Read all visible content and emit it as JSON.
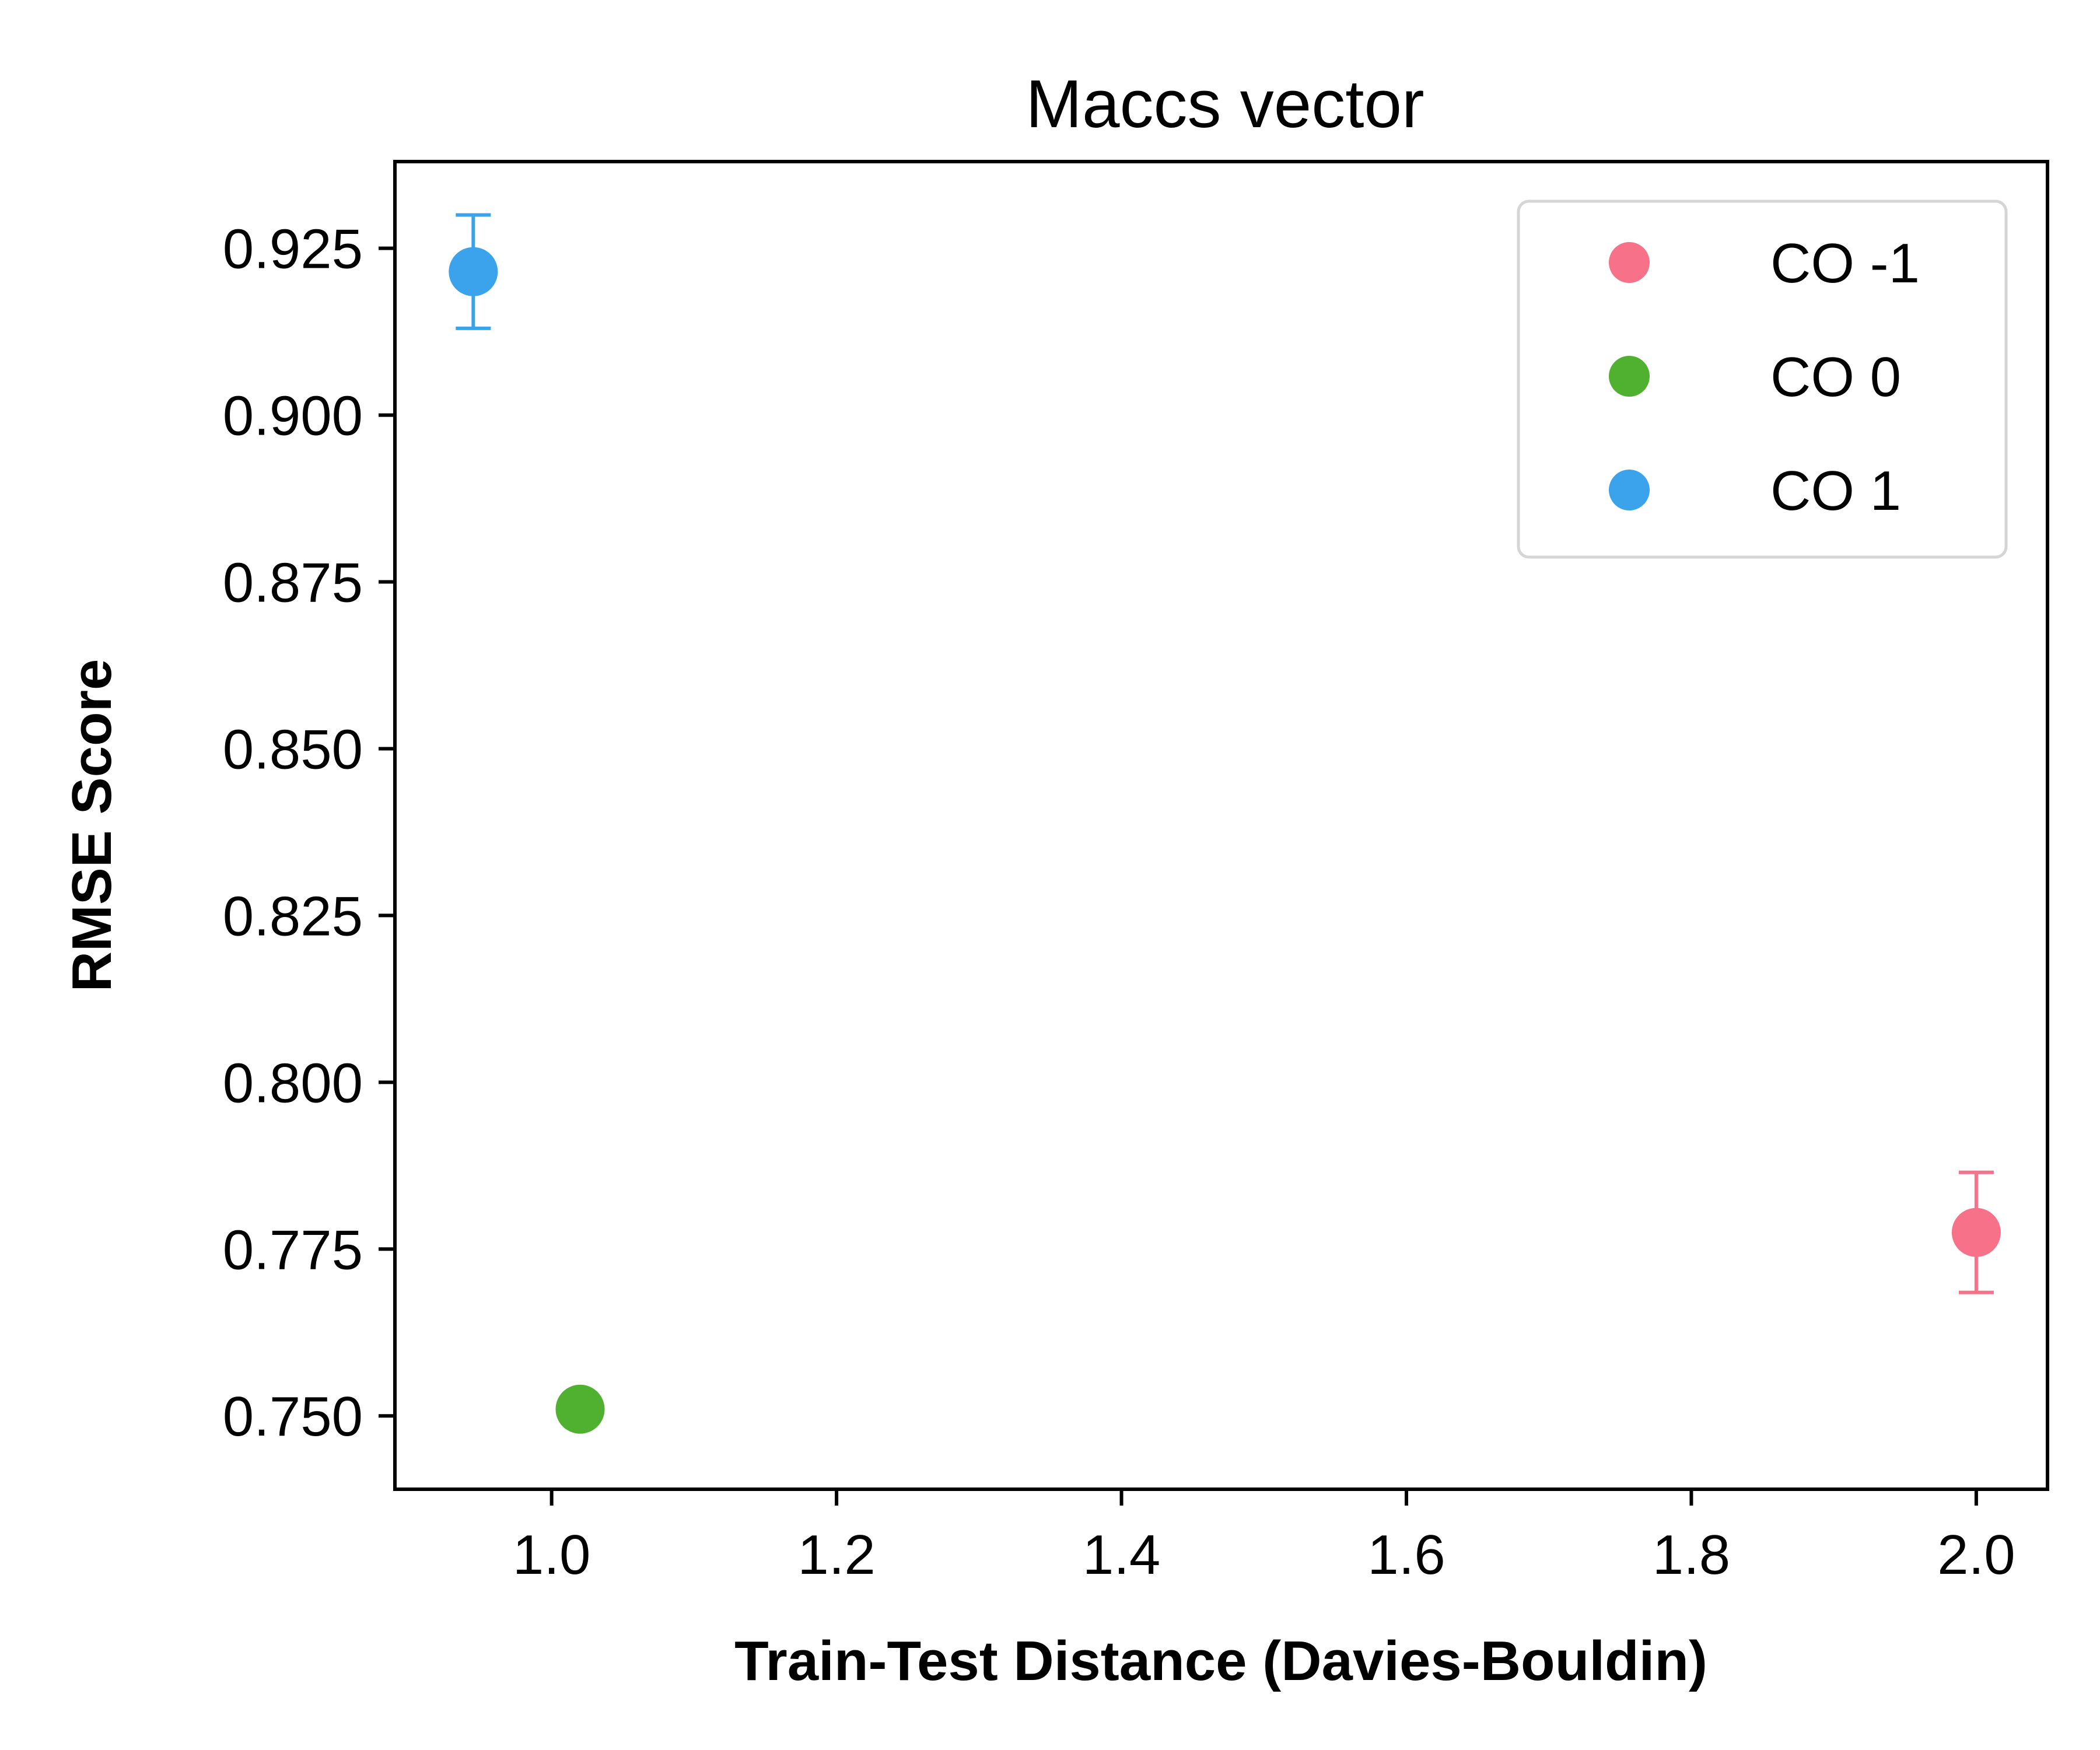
{
  "chart_data": {
    "type": "scatter",
    "title": "Maccs vector",
    "xlabel": "Train-Test Distance (Davies-Bouldin)",
    "ylabel": "RMSE Score",
    "xlim": [
      0.89,
      2.05
    ],
    "ylim": [
      0.739,
      0.938
    ],
    "xticks": [
      1.0,
      1.2,
      1.4,
      1.6,
      1.8,
      2.0
    ],
    "xtick_labels": [
      "1.0",
      "1.2",
      "1.4",
      "1.6",
      "1.8",
      "2.0"
    ],
    "yticks": [
      0.75,
      0.775,
      0.8,
      0.825,
      0.85,
      0.875,
      0.9,
      0.925
    ],
    "ytick_labels": [
      "0.750",
      "0.775",
      "0.800",
      "0.825",
      "0.850",
      "0.875",
      "0.900",
      "0.925"
    ],
    "grid": false,
    "legend_position": "top-right",
    "series": [
      {
        "name": "CO -1",
        "color": "#f77189",
        "points": [
          {
            "x": 2.0,
            "y": 0.7775,
            "err": 0.009
          }
        ]
      },
      {
        "name": "CO 0",
        "color": "#50b131",
        "points": [
          {
            "x": 1.02,
            "y": 0.751,
            "err": 0
          }
        ]
      },
      {
        "name": "CO 1",
        "color": "#3ba3ec",
        "points": [
          {
            "x": 0.945,
            "y": 0.9215,
            "err": 0.0085
          }
        ]
      }
    ]
  }
}
